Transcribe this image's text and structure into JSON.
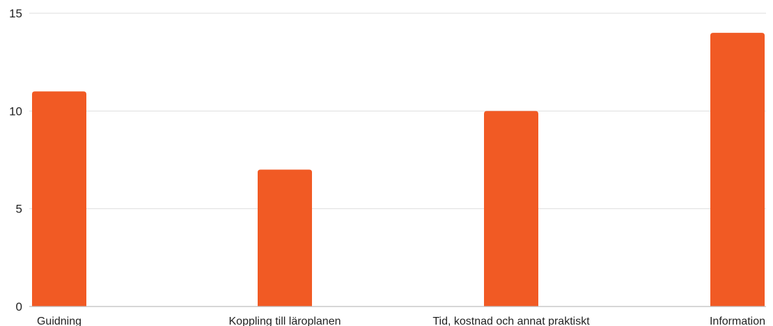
{
  "chart_data": {
    "type": "bar",
    "categories": [
      "Guidning",
      "Koppling till läroplanen",
      "Tid, kostnad och annat praktiskt",
      "Information"
    ],
    "values": [
      11,
      7,
      10,
      14
    ],
    "yticks": [
      "0",
      "5",
      "10",
      "15"
    ],
    "ylim": [
      0,
      15
    ],
    "grid": true,
    "legend": "none",
    "colors": {
      "bar": "#f15a24",
      "grid": "#dedede",
      "axis": "#bdbdbd",
      "text": "#222222"
    }
  }
}
